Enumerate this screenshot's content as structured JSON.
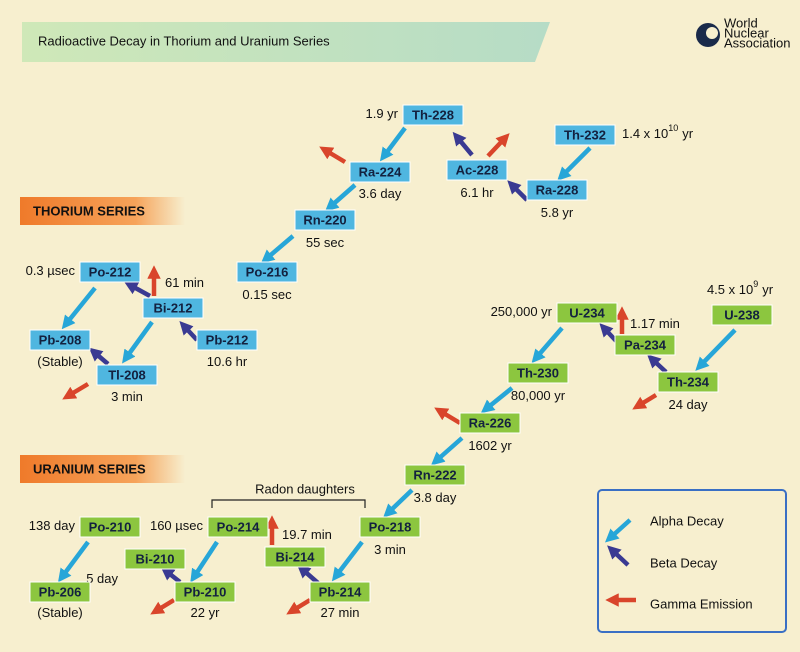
{
  "header": {
    "title": "Radioactive Decay in Thorium and Uranium Series",
    "logo": [
      "World",
      "Nuclear",
      "Association"
    ]
  },
  "thorium_series": {
    "label": "THORIUM SERIES",
    "nodes": [
      {
        "label": "Th-232",
        "half_life": "1.4 x 10",
        "exponent": "10",
        "unit": "yr"
      },
      {
        "label": "Ra-228",
        "half_life": "5.8 yr"
      },
      {
        "label": "Ac-228",
        "half_life": "6.1 hr"
      },
      {
        "label": "Th-228",
        "half_life": "1.9 yr"
      },
      {
        "label": "Ra-224",
        "half_life": "3.6 day"
      },
      {
        "label": "Rn-220",
        "half_life": "55 sec"
      },
      {
        "label": "Po-216",
        "half_life": "0.15 sec"
      },
      {
        "label": "Pb-212",
        "half_life": "10.6 hr"
      },
      {
        "label": "Bi-212",
        "half_life": "61 min"
      },
      {
        "label": "Po-212",
        "half_life": "0.3 µsec"
      },
      {
        "label": "Pb-208",
        "half_life": "(Stable)"
      },
      {
        "label": "Tl-208",
        "half_life": "3 min"
      }
    ]
  },
  "uranium_series": {
    "label": "URANIUM SERIES",
    "annotation": "Radon daughters",
    "nodes": [
      {
        "label": "U-238",
        "half_life": "4.5 x 10",
        "exponent": "9",
        "unit": "yr"
      },
      {
        "label": "Th-234",
        "half_life": "24 day"
      },
      {
        "label": "Pa-234",
        "half_life": "1.17 min"
      },
      {
        "label": "U-234",
        "half_life": "250,000 yr"
      },
      {
        "label": "Th-230",
        "half_life": "80,000 yr"
      },
      {
        "label": "Ra-226",
        "half_life": "1602 yr"
      },
      {
        "label": "Rn-222",
        "half_life": "3.8 day"
      },
      {
        "label": "Po-218",
        "half_life": "3 min"
      },
      {
        "label": "Pb-214",
        "half_life": "27 min"
      },
      {
        "label": "Bi-214",
        "half_life": "19.7 min"
      },
      {
        "label": "Po-214",
        "half_life": "160 µsec"
      },
      {
        "label": "Pb-210",
        "half_life": "22 yr"
      },
      {
        "label": "Bi-210",
        "half_life": "5 day"
      },
      {
        "label": "Po-210",
        "half_life": "138 day"
      },
      {
        "label": "Pb-206",
        "half_life": "(Stable)"
      }
    ]
  },
  "legend": [
    "Alpha Decay",
    "Beta Decay",
    "Gamma Emission"
  ]
}
